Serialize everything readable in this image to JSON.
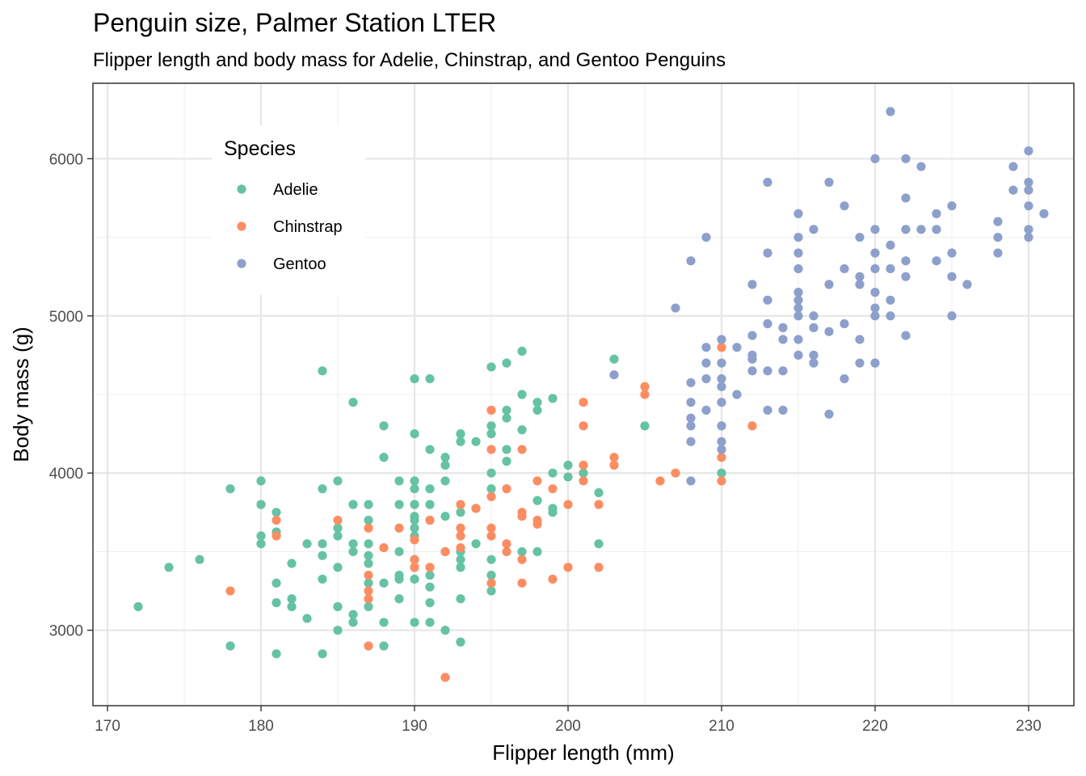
{
  "chart_data": {
    "type": "scatter",
    "title": "Penguin size, Palmer Station LTER",
    "subtitle": "Flipper length and body mass for Adelie, Chinstrap, and Gentoo Penguins",
    "xlabel": "Flipper length (mm)",
    "ylabel": "Body mass (g)",
    "xlim": [
      169.05,
      232.95
    ],
    "ylim": [
      2520,
      6480
    ],
    "x_ticks": [
      170,
      180,
      190,
      200,
      210,
      220,
      230
    ],
    "y_ticks": [
      3000,
      4000,
      5000,
      6000
    ],
    "grid": true,
    "legend": {
      "title": "Species",
      "placement": "top-left"
    },
    "series": [
      {
        "name": "Adelie",
        "color": "#66c2a5",
        "points": [
          [
            172,
            3150
          ],
          [
            174,
            3400
          ],
          [
            176,
            3450
          ],
          [
            178,
            3900
          ],
          [
            178,
            2900
          ],
          [
            180,
            3950
          ],
          [
            180,
            3800
          ],
          [
            180,
            3600
          ],
          [
            180,
            3550
          ],
          [
            181,
            3750
          ],
          [
            181,
            3625
          ],
          [
            181,
            3300
          ],
          [
            181,
            3175
          ],
          [
            181,
            2850
          ],
          [
            182,
            3425
          ],
          [
            182,
            3200
          ],
          [
            182,
            3150
          ],
          [
            183,
            3550
          ],
          [
            183,
            3075
          ],
          [
            184,
            4650
          ],
          [
            184,
            3900
          ],
          [
            184,
            3550
          ],
          [
            184,
            3475
          ],
          [
            184,
            3325
          ],
          [
            184,
            2850
          ],
          [
            185,
            3950
          ],
          [
            185,
            3650
          ],
          [
            185,
            3600
          ],
          [
            185,
            3400
          ],
          [
            185,
            3150
          ],
          [
            185,
            3000
          ],
          [
            186,
            4450
          ],
          [
            186,
            3800
          ],
          [
            186,
            3550
          ],
          [
            186,
            3500
          ],
          [
            186,
            3100
          ],
          [
            186,
            3050
          ],
          [
            187,
            3800
          ],
          [
            187,
            3700
          ],
          [
            187,
            3550
          ],
          [
            187,
            3475
          ],
          [
            187,
            3425
          ],
          [
            187,
            3300
          ],
          [
            187,
            3150
          ],
          [
            188,
            4300
          ],
          [
            188,
            4100
          ],
          [
            188,
            3300
          ],
          [
            188,
            3050
          ],
          [
            188,
            2900
          ],
          [
            189,
            3950
          ],
          [
            189,
            3800
          ],
          [
            189,
            3500
          ],
          [
            189,
            3350
          ],
          [
            189,
            3325
          ],
          [
            189,
            3200
          ],
          [
            190,
            4600
          ],
          [
            190,
            4250
          ],
          [
            190,
            3950
          ],
          [
            190,
            3900
          ],
          [
            190,
            3800
          ],
          [
            190,
            3725
          ],
          [
            190,
            3700
          ],
          [
            190,
            3650
          ],
          [
            190,
            3600
          ],
          [
            190,
            3450
          ],
          [
            190,
            3400
          ],
          [
            190,
            3325
          ],
          [
            190,
            3050
          ],
          [
            191,
            4600
          ],
          [
            191,
            4150
          ],
          [
            191,
            3900
          ],
          [
            191,
            3800
          ],
          [
            191,
            3700
          ],
          [
            191,
            3350
          ],
          [
            191,
            3275
          ],
          [
            191,
            3175
          ],
          [
            191,
            3050
          ],
          [
            192,
            4100
          ],
          [
            192,
            4050
          ],
          [
            192,
            3950
          ],
          [
            192,
            3725
          ],
          [
            192,
            3500
          ],
          [
            192,
            3000
          ],
          [
            193,
            4250
          ],
          [
            193,
            4200
          ],
          [
            193,
            3750
          ],
          [
            193,
            3500
          ],
          [
            193,
            3450
          ],
          [
            193,
            3400
          ],
          [
            193,
            3200
          ],
          [
            193,
            2925
          ],
          [
            194,
            4200
          ],
          [
            194,
            3775
          ],
          [
            194,
            3550
          ],
          [
            195,
            4675
          ],
          [
            195,
            4300
          ],
          [
            195,
            4250
          ],
          [
            195,
            4000
          ],
          [
            195,
            3900
          ],
          [
            195,
            3450
          ],
          [
            195,
            3350
          ],
          [
            195,
            3250
          ],
          [
            196,
            4700
          ],
          [
            196,
            4400
          ],
          [
            196,
            4350
          ],
          [
            196,
            4150
          ],
          [
            196,
            4075
          ],
          [
            197,
            4775
          ],
          [
            197,
            4500
          ],
          [
            197,
            4275
          ],
          [
            197,
            3500
          ],
          [
            198,
            4450
          ],
          [
            198,
            4400
          ],
          [
            198,
            3825
          ],
          [
            198,
            3500
          ],
          [
            199,
            4475
          ],
          [
            199,
            4000
          ],
          [
            199,
            3775
          ],
          [
            199,
            3750
          ],
          [
            200,
            4050
          ],
          [
            200,
            3975
          ],
          [
            201,
            4000
          ],
          [
            202,
            3875
          ],
          [
            202,
            3550
          ],
          [
            203,
            4725
          ],
          [
            205,
            4300
          ],
          [
            210,
            4000
          ]
        ]
      },
      {
        "name": "Chinstrap",
        "color": "#fc8d62",
        "points": [
          [
            178,
            3250
          ],
          [
            181,
            3700
          ],
          [
            181,
            3600
          ],
          [
            185,
            3700
          ],
          [
            187,
            3650
          ],
          [
            187,
            3350
          ],
          [
            187,
            3250
          ],
          [
            187,
            3200
          ],
          [
            187,
            2900
          ],
          [
            188,
            3525
          ],
          [
            189,
            3650
          ],
          [
            190,
            3575
          ],
          [
            190,
            3450
          ],
          [
            190,
            3400
          ],
          [
            191,
            3700
          ],
          [
            191,
            3400
          ],
          [
            192,
            3500
          ],
          [
            192,
            2700
          ],
          [
            193,
            3800
          ],
          [
            193,
            3650
          ],
          [
            193,
            3600
          ],
          [
            193,
            3525
          ],
          [
            194,
            3775
          ],
          [
            195,
            4400
          ],
          [
            195,
            4150
          ],
          [
            195,
            3850
          ],
          [
            195,
            3650
          ],
          [
            195,
            3600
          ],
          [
            195,
            3300
          ],
          [
            196,
            3900
          ],
          [
            196,
            3550
          ],
          [
            196,
            3500
          ],
          [
            197,
            4150
          ],
          [
            197,
            3750
          ],
          [
            197,
            3725
          ],
          [
            197,
            3450
          ],
          [
            197,
            3300
          ],
          [
            198,
            3950
          ],
          [
            198,
            3700
          ],
          [
            198,
            3675
          ],
          [
            199,
            3900
          ],
          [
            199,
            3325
          ],
          [
            200,
            3800
          ],
          [
            200,
            3400
          ],
          [
            201,
            4450
          ],
          [
            201,
            4300
          ],
          [
            201,
            4050
          ],
          [
            201,
            3950
          ],
          [
            202,
            3800
          ],
          [
            202,
            3400
          ],
          [
            203,
            4100
          ],
          [
            203,
            4050
          ],
          [
            205,
            4550
          ],
          [
            205,
            4500
          ],
          [
            206,
            3950
          ],
          [
            207,
            4000
          ],
          [
            210,
            4800
          ],
          [
            210,
            4100
          ],
          [
            210,
            3950
          ],
          [
            212,
            4300
          ]
        ]
      },
      {
        "name": "Gentoo",
        "color": "#8da0cb",
        "points": [
          [
            203,
            4625
          ],
          [
            207,
            5050
          ],
          [
            208,
            5350
          ],
          [
            208,
            4575
          ],
          [
            208,
            4450
          ],
          [
            208,
            4350
          ],
          [
            208,
            4300
          ],
          [
            208,
            4200
          ],
          [
            208,
            3950
          ],
          [
            209,
            5500
          ],
          [
            209,
            4800
          ],
          [
            209,
            4700
          ],
          [
            209,
            4600
          ],
          [
            209,
            4400
          ],
          [
            210,
            4850
          ],
          [
            210,
            4700
          ],
          [
            210,
            4600
          ],
          [
            210,
            4550
          ],
          [
            210,
            4450
          ],
          [
            210,
            4300
          ],
          [
            210,
            4200
          ],
          [
            210,
            4150
          ],
          [
            211,
            4800
          ],
          [
            211,
            4500
          ],
          [
            212,
            5200
          ],
          [
            212,
            4875
          ],
          [
            212,
            4750
          ],
          [
            212,
            4725
          ],
          [
            212,
            4650
          ],
          [
            213,
            5850
          ],
          [
            213,
            5400
          ],
          [
            213,
            5100
          ],
          [
            213,
            4950
          ],
          [
            213,
            4650
          ],
          [
            213,
            4400
          ],
          [
            214,
            4925
          ],
          [
            214,
            4850
          ],
          [
            214,
            4650
          ],
          [
            214,
            4400
          ],
          [
            215,
            5650
          ],
          [
            215,
            5500
          ],
          [
            215,
            5400
          ],
          [
            215,
            5300
          ],
          [
            215,
            5150
          ],
          [
            215,
            5100
          ],
          [
            215,
            5050
          ],
          [
            215,
            5000
          ],
          [
            215,
            4850
          ],
          [
            215,
            4750
          ],
          [
            216,
            5550
          ],
          [
            216,
            5000
          ],
          [
            216,
            4925
          ],
          [
            216,
            4750
          ],
          [
            216,
            4700
          ],
          [
            217,
            5850
          ],
          [
            217,
            5200
          ],
          [
            217,
            4900
          ],
          [
            217,
            4375
          ],
          [
            218,
            5700
          ],
          [
            218,
            5300
          ],
          [
            218,
            4950
          ],
          [
            218,
            4600
          ],
          [
            219,
            5500
          ],
          [
            219,
            5250
          ],
          [
            219,
            5200
          ],
          [
            219,
            4850
          ],
          [
            219,
            4700
          ],
          [
            220,
            6000
          ],
          [
            220,
            5550
          ],
          [
            220,
            5400
          ],
          [
            220,
            5300
          ],
          [
            220,
            5150
          ],
          [
            220,
            5050
          ],
          [
            220,
            5000
          ],
          [
            220,
            4700
          ],
          [
            221,
            6300
          ],
          [
            221,
            5450
          ],
          [
            221,
            5300
          ],
          [
            221,
            5100
          ],
          [
            221,
            5000
          ],
          [
            222,
            6000
          ],
          [
            222,
            5750
          ],
          [
            222,
            5550
          ],
          [
            222,
            5350
          ],
          [
            222,
            5250
          ],
          [
            222,
            4875
          ],
          [
            223,
            5950
          ],
          [
            223,
            5550
          ],
          [
            224,
            5650
          ],
          [
            224,
            5550
          ],
          [
            224,
            5350
          ],
          [
            225,
            5700
          ],
          [
            225,
            5400
          ],
          [
            225,
            5250
          ],
          [
            225,
            5000
          ],
          [
            226,
            5200
          ],
          [
            228,
            5600
          ],
          [
            228,
            5500
          ],
          [
            228,
            5400
          ],
          [
            229,
            5950
          ],
          [
            229,
            5800
          ],
          [
            230,
            6050
          ],
          [
            230,
            5850
          ],
          [
            230,
            5800
          ],
          [
            230,
            5700
          ],
          [
            230,
            5550
          ],
          [
            230,
            5500
          ],
          [
            231,
            5650
          ]
        ]
      }
    ]
  }
}
